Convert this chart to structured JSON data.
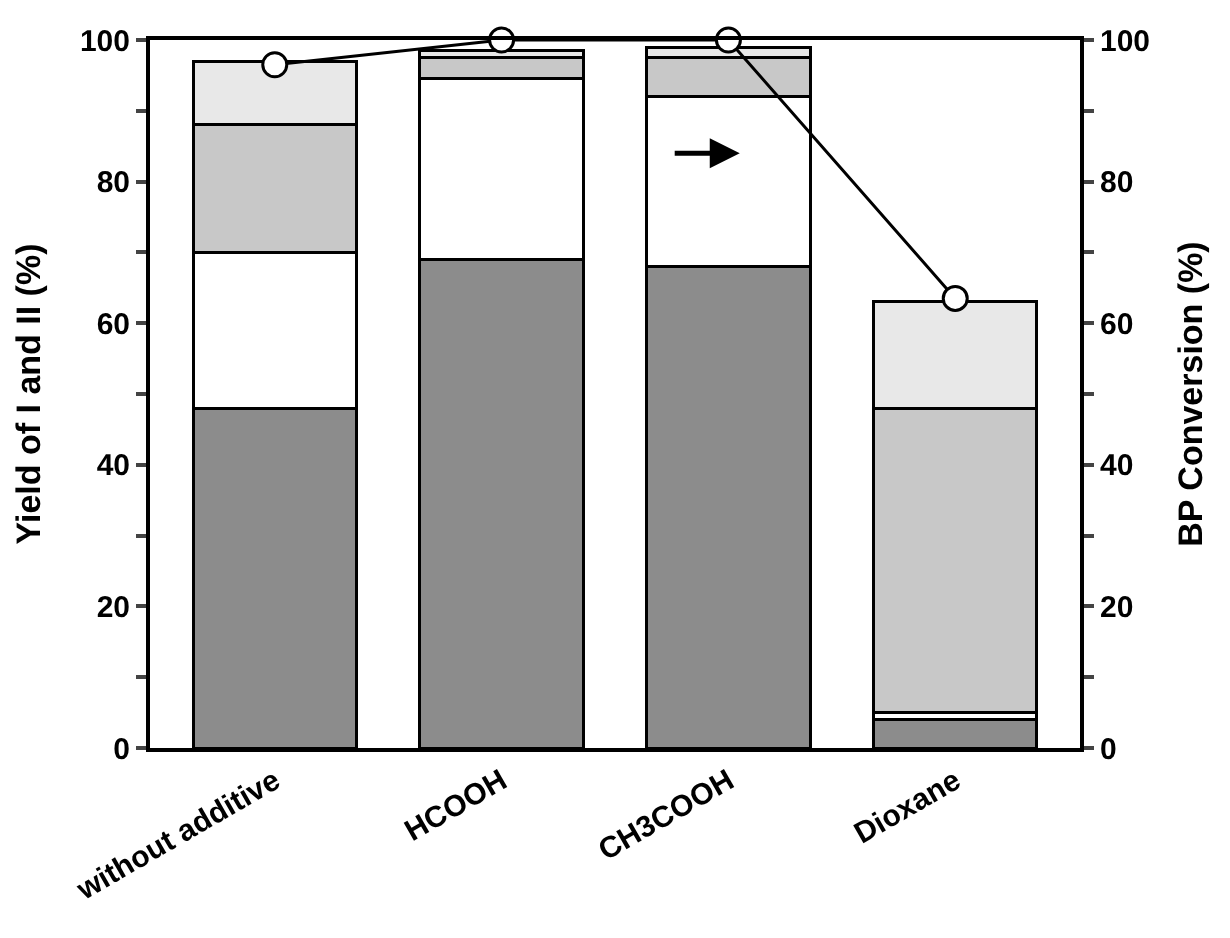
{
  "chart_data": {
    "type": "bar",
    "stacked": true,
    "ylabel": "Yield of I and II (%)",
    "y2label": "BP Conversion (%)",
    "categories": [
      "without additive",
      "HCOOH",
      "CH3COOH",
      "Dioxane"
    ],
    "series": [
      {
        "color": "#8c8c8c",
        "values": [
          48,
          69,
          68,
          4
        ]
      },
      {
        "color": "#ffffff",
        "values": [
          22,
          25.5,
          24,
          1
        ]
      },
      {
        "color": "#c8c8c8",
        "values": [
          18,
          3,
          5.5,
          43
        ]
      },
      {
        "color": "#e8e8e8",
        "values": [
          9,
          1,
          1.5,
          15
        ]
      },
      {
        "type": "line",
        "axis": "y2",
        "color": "#000000",
        "values": [
          96.5,
          100,
          100,
          63.5
        ]
      }
    ],
    "ylim": [
      0,
      100
    ],
    "yticks": [
      0,
      {
        "value": 10,
        "label": null
      },
      20,
      {
        "value": 30,
        "label": null
      },
      40,
      {
        "value": 50,
        "label": null
      },
      60,
      {
        "value": 70,
        "label": null
      },
      80,
      {
        "value": 90,
        "label": null
      },
      100
    ],
    "y2lim": [
      0,
      100
    ],
    "y2ticks": [
      0,
      {
        "value": 10,
        "label": null
      },
      20,
      {
        "value": 30,
        "label": null
      },
      40,
      {
        "value": 50,
        "label": null
      },
      60,
      {
        "value": 70,
        "label": null
      },
      80,
      {
        "value": 90,
        "label": null
      },
      100
    ],
    "marker": "circle"
  }
}
